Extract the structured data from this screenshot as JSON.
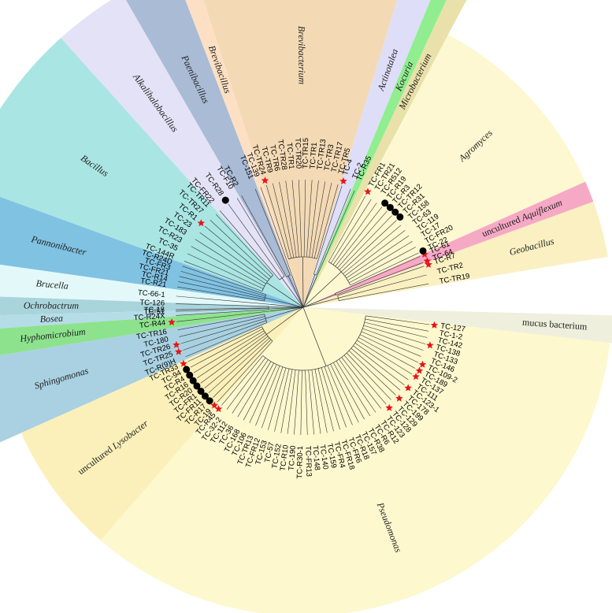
{
  "clades": [
    {
      "label": "Brevibacterium",
      "color": "#f3dab5",
      "angles": [
        73,
        108
      ],
      "leaves": [
        {
          "label": "TC-TR5"
        },
        {
          "label": "TC-TR17"
        },
        {
          "label": "TC-TR3"
        },
        {
          "label": "TC-TR13"
        },
        {
          "label": "TC-TR1"
        },
        {
          "label": "TC-TR15"
        },
        {
          "label": "TC-TR20"
        },
        {
          "label": "TC-TR1"
        },
        {
          "label": "TC-TR28"
        },
        {
          "label": "TC-TR6"
        },
        {
          "label": "TC-TR9"
        },
        {
          "label": "TC-TR24",
          "marker": "star"
        }
      ]
    },
    {
      "label": "Brevibacillus",
      "color": "#fde0c4",
      "angles": [
        108,
        111
      ],
      "leaves": [
        {
          "label": "TC-139"
        }
      ]
    },
    {
      "label": "Paenibacillus",
      "color": "#a9bbd5",
      "angles": [
        111,
        120
      ],
      "leaves": [
        {
          "label": "TC-151"
        },
        {
          "label": "TC-R2"
        }
      ]
    },
    {
      "label": "Alkalihalobacillus",
      "color": "#e4e2f6",
      "angles": [
        120,
        132
      ],
      "leaves": [
        {
          "label": "TC-F10"
        },
        {
          "label": "TC-R28",
          "marker": "circle"
        },
        {
          "label": "TC-FR22"
        }
      ]
    },
    {
      "label": "Bacillus",
      "color": "#a9e5e3",
      "angles": [
        132,
        160
      ],
      "leaves": [
        {
          "label": "TC-TR11"
        },
        {
          "label": "TC-TR27"
        },
        {
          "label": "TC-R1",
          "marker": "star"
        },
        {
          "label": "TC-23"
        },
        {
          "label": "TC-183"
        },
        {
          "label": "TC-R23"
        },
        {
          "label": "TC-35"
        },
        {
          "label": "TC-144R"
        }
      ]
    },
    {
      "label": "Pannonibacter",
      "color": "#80c2e2",
      "angles": [
        160,
        172
      ],
      "leaves": [
        {
          "label": "TC-R24D"
        },
        {
          "label": "TC-FR3"
        },
        {
          "label": "TC-FR21"
        },
        {
          "label": "TC-R14"
        },
        {
          "label": "TC-R21"
        }
      ]
    },
    {
      "label": "Brucella",
      "color": "#e3f9f9",
      "angles": [
        172,
        178
      ],
      "leaves": [
        {
          "label": "TC-66-1"
        }
      ]
    },
    {
      "label": "Ochrobactrum",
      "color": "#a9d4dc",
      "angles": [
        178,
        181.5
      ],
      "leaves": [
        {
          "label": "TC-126"
        },
        {
          "label": "TC-18"
        }
      ]
    },
    {
      "label": "Bosea",
      "color": "#b5dde7",
      "angles": [
        181.5,
        184
      ],
      "leaves": [
        {
          "label": "TC-51"
        },
        {
          "label": "TC-R24X"
        }
      ]
    },
    {
      "label": "Hyphomicrobium",
      "color": "#8de38d",
      "angles": [
        184,
        189
      ],
      "leaves": [
        {
          "label": "TC-R44",
          "marker": "star"
        }
      ]
    },
    {
      "label": "Sphingomonas",
      "color": "#a9d1e1",
      "angles": [
        189,
        204
      ],
      "leaves": [
        {
          "label": "TC-TR16"
        },
        {
          "label": "TC-180"
        },
        {
          "label": "TC-TR26",
          "marker": "star"
        },
        {
          "label": "TC-TR25",
          "marker": "star"
        },
        {
          "label": "TC-R(9)H"
        }
      ]
    },
    {
      "prefix": "uncultured",
      "label": "Lysobacter",
      "color": "#fbf0b9",
      "angles": [
        204,
        229
      ],
      "leaves": [
        {
          "label": "TC-TR33",
          "marker": "star"
        },
        {
          "label": "TC-94",
          "marker": "circle"
        },
        {
          "label": "TC-R4",
          "marker": "circle"
        },
        {
          "label": "TC-R16",
          "marker": "circle"
        },
        {
          "label": "TC-R20",
          "marker": "circle"
        },
        {
          "label": "TC-FR1",
          "marker": "circle"
        },
        {
          "label": "TC-FR11",
          "marker": "circle"
        },
        {
          "label": "TC-R17",
          "marker": "circle"
        },
        {
          "label": "TC-19",
          "marker": "star"
        }
      ]
    },
    {
      "label": "Pseudomonas",
      "color": "#fdf8ce",
      "angles": [
        229,
        353.4
      ],
      "leaves": [
        {
          "label": "TC-R45",
          "marker": "star"
        },
        {
          "label": "TC-32-2"
        },
        {
          "label": "TC-112"
        },
        {
          "label": "TC-36"
        },
        {
          "label": "TC-168"
        },
        {
          "label": "TC-106"
        },
        {
          "label": "TC-TR13"
        },
        {
          "label": "TC-FR12"
        },
        {
          "label": "TC-153"
        },
        {
          "label": "TC-57"
        },
        {
          "label": "TC-152"
        },
        {
          "label": "TC-R10"
        },
        {
          "label": "TC-190"
        },
        {
          "label": "TC-R30-1"
        },
        {
          "label": "TC-FR13"
        },
        {
          "label": "TC-148"
        },
        {
          "label": "TC-140"
        },
        {
          "label": "TC-159"
        },
        {
          "label": "TC-FR4"
        },
        {
          "label": "TC-FR18"
        },
        {
          "label": "TC-FR6"
        },
        {
          "label": "TC-R18"
        },
        {
          "label": "TC-157"
        },
        {
          "label": "TC-R38"
        },
        {
          "label": "TC-R6"
        },
        {
          "label": "TC-R12"
        },
        {
          "label": "TC-123"
        },
        {
          "label": "TC-128",
          "marker": "star"
        },
        {
          "label": "TC-129"
        },
        {
          "label": "TC-199",
          "marker": "star"
        },
        {
          "label": "TC-178"
        },
        {
          "label": "TC-123-1",
          "marker": "star"
        },
        {
          "label": "TC-111"
        },
        {
          "label": "TC-137",
          "marker": "star"
        },
        {
          "label": "TC-189",
          "marker": "star"
        },
        {
          "label": "TC-109-2",
          "marker": "star"
        },
        {
          "label": "TC-146"
        },
        {
          "label": "TC-133"
        },
        {
          "label": "TC-138",
          "marker": "star"
        },
        {
          "label": "TC-142"
        },
        {
          "label": "TC-1-2"
        },
        {
          "label": "TC-127",
          "marker": "star"
        }
      ]
    },
    {
      "label": "mucus bacterium",
      "color": "#efefdd",
      "plain": true,
      "angles": [
        353.4,
        358.5
      ],
      "leaves": []
    },
    {
      "label": "Geobacillus",
      "color": "#faf0c2",
      "angles": [
        9.4,
        20
      ],
      "leaves": [
        {
          "label": "TC-TR19"
        },
        {
          "label": "TC-TR2"
        },
        {
          "label": "TC-R7",
          "marker": "star"
        }
      ]
    },
    {
      "prefix": "uncultured",
      "label": "Aquiflexum",
      "color": "#f6a9c4",
      "angles": [
        20,
        24
      ],
      "leaves": [
        {
          "label": "TC-64",
          "marker": "star"
        },
        {
          "label": "TC-61",
          "marker": "star"
        }
      ]
    },
    {
      "label": "Agromyces",
      "color": "#fdf8d1",
      "angles": [
        24,
        62
      ],
      "leaves": [
        {
          "label": "TC-22",
          "marker": "circle"
        },
        {
          "label": "TC-FR20"
        },
        {
          "label": "TC-17"
        },
        {
          "label": "TC-119"
        },
        {
          "label": "TC-63"
        },
        {
          "label": "TC-158"
        },
        {
          "label": "TC-R31",
          "marker": "circle"
        },
        {
          "label": "TC-TR12",
          "marker": "circle"
        },
        {
          "label": "TC-R3",
          "marker": "circle"
        },
        {
          "label": "TC-R19",
          "marker": "circle"
        },
        {
          "label": "TC-R512"
        },
        {
          "label": "TC-TR21"
        },
        {
          "label": "TC-FR1",
          "marker": "star"
        }
      ]
    },
    {
      "label": "Microbacterium",
      "color": "#e9e1a9",
      "angles": [
        62,
        65
      ],
      "leaves": []
    },
    {
      "label": "Kocuria",
      "color": "#90ee90",
      "angles": [
        65,
        67.5
      ],
      "leaves": [
        {
          "label": "TC-R35"
        }
      ]
    },
    {
      "label": "Actinotalea",
      "color": "#dedef8",
      "angles": [
        67.5,
        73
      ],
      "leaves": [
        {
          "label": "TC-2"
        },
        {
          "label": "TC-4",
          "marker": "star"
        }
      ]
    }
  ]
}
